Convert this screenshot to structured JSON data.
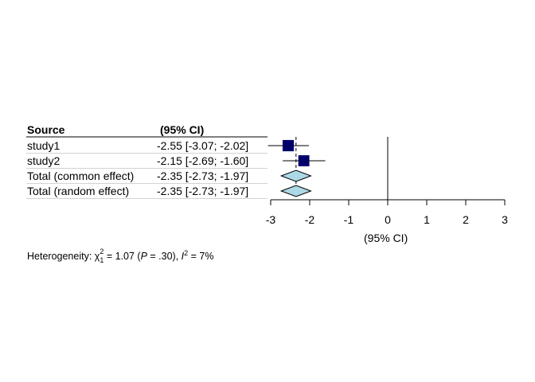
{
  "chart_data": {
    "type": "forest",
    "columns": {
      "source": "Source",
      "estimate": "(95% CI)"
    },
    "rows": [
      {
        "label": "study1",
        "estimate": -2.55,
        "lower": -3.07,
        "upper": -2.02,
        "ci_text": "-2.55 [-3.07; -2.02]",
        "kind": "study",
        "weight": 0.54
      },
      {
        "label": "study2",
        "estimate": -2.15,
        "lower": -2.69,
        "upper": -1.6,
        "ci_text": "-2.15 [-2.69; -1.60]",
        "kind": "study",
        "weight": 0.46
      },
      {
        "label": "Total (common effect)",
        "estimate": -2.35,
        "lower": -2.73,
        "upper": -1.97,
        "ci_text": "-2.35 [-2.73; -1.97]",
        "kind": "summary"
      },
      {
        "label": "Total (random effect)",
        "estimate": -2.35,
        "lower": -2.73,
        "upper": -1.97,
        "ci_text": "-2.35 [-2.73; -1.97]",
        "kind": "summary"
      }
    ],
    "xlim": [
      -3,
      3
    ],
    "xticks": [
      "-3",
      "-2",
      "-1",
      "0",
      "1",
      "2",
      "3"
    ],
    "xlabel": "(95% CI)",
    "reference_line": 0,
    "summary_line": -2.35,
    "heterogeneity": {
      "prefix": "Heterogeneity: χ",
      "sub": "1",
      "sup": "2",
      "stat": " = 1.07 (",
      "p_label": "P",
      "p_value": " = .30), ",
      "i_label": "I",
      "i_sup": "2",
      "i_value": " = 7%"
    },
    "colors": {
      "study_box": "#00006b",
      "diamond": "#add8e6",
      "line": "#000000"
    }
  }
}
